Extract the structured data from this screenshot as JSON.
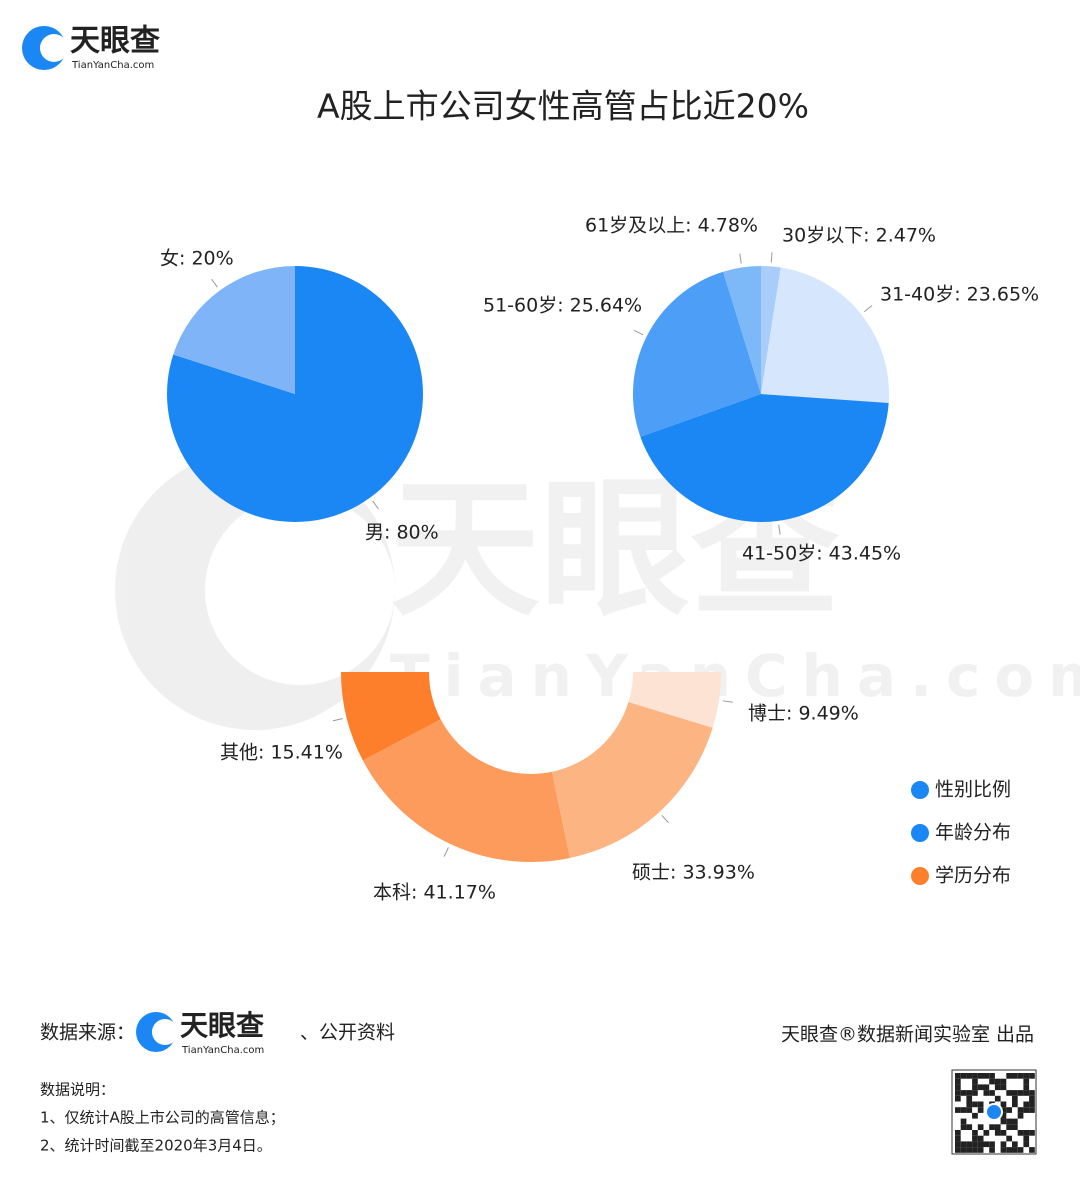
{
  "logo": {
    "name": "天眼查",
    "domain": "TianYanCha.com"
  },
  "title": "A股上市公司女性高管占比近20%",
  "watermark": {
    "name": "天眼查",
    "domain": "TianYanCha.com"
  },
  "chart_data": [
    {
      "type": "pie",
      "name": "性别比例",
      "legend_color": "#1a87f5",
      "values": [
        80,
        20
      ],
      "value_labels": [
        "男: 80%",
        "女: 20%"
      ],
      "colors": [
        "#1a87f5",
        "#7fb5f8"
      ]
    },
    {
      "type": "pie",
      "name": "年龄分布",
      "legend_color": "#1a87f5",
      "values": [
        2.47,
        23.65,
        43.45,
        25.64,
        4.78
      ],
      "value_labels": [
        "30岁以下: 2.47%",
        "31-40岁: 23.65%",
        "41-50岁: 43.45%",
        "51-60岁: 25.64%",
        "61岁及以上: 4.78%"
      ],
      "colors": [
        "#a9cdfb",
        "#d6e7fd",
        "#1a87f5",
        "#4d9ef7",
        "#7db8f9"
      ]
    },
    {
      "type": "half-donut",
      "name": "学历分布",
      "legend_color": "#fd7f2c",
      "values": [
        15.41,
        41.17,
        33.93,
        9.49
      ],
      "value_labels": [
        "其他: 15.41%",
        "本科: 41.17%",
        "硕士: 33.93%",
        "博士: 9.49%"
      ],
      "colors": [
        "#fd7f2c",
        "#fd9b5c",
        "#fdb483",
        "#fde3d3"
      ]
    }
  ],
  "footer": {
    "source_label": "数据来源：",
    "source_logo": {
      "name": "天眼查",
      "domain": "TianYanCha.com"
    },
    "source_extra": "、公开资料",
    "producer": "天眼查®数据新闻实验室 出品",
    "notes_title": "数据说明：",
    "notes": [
      "1、仅统计A股上市公司的高管信息；",
      "2、统计时间截至2020年3月4日。"
    ]
  }
}
